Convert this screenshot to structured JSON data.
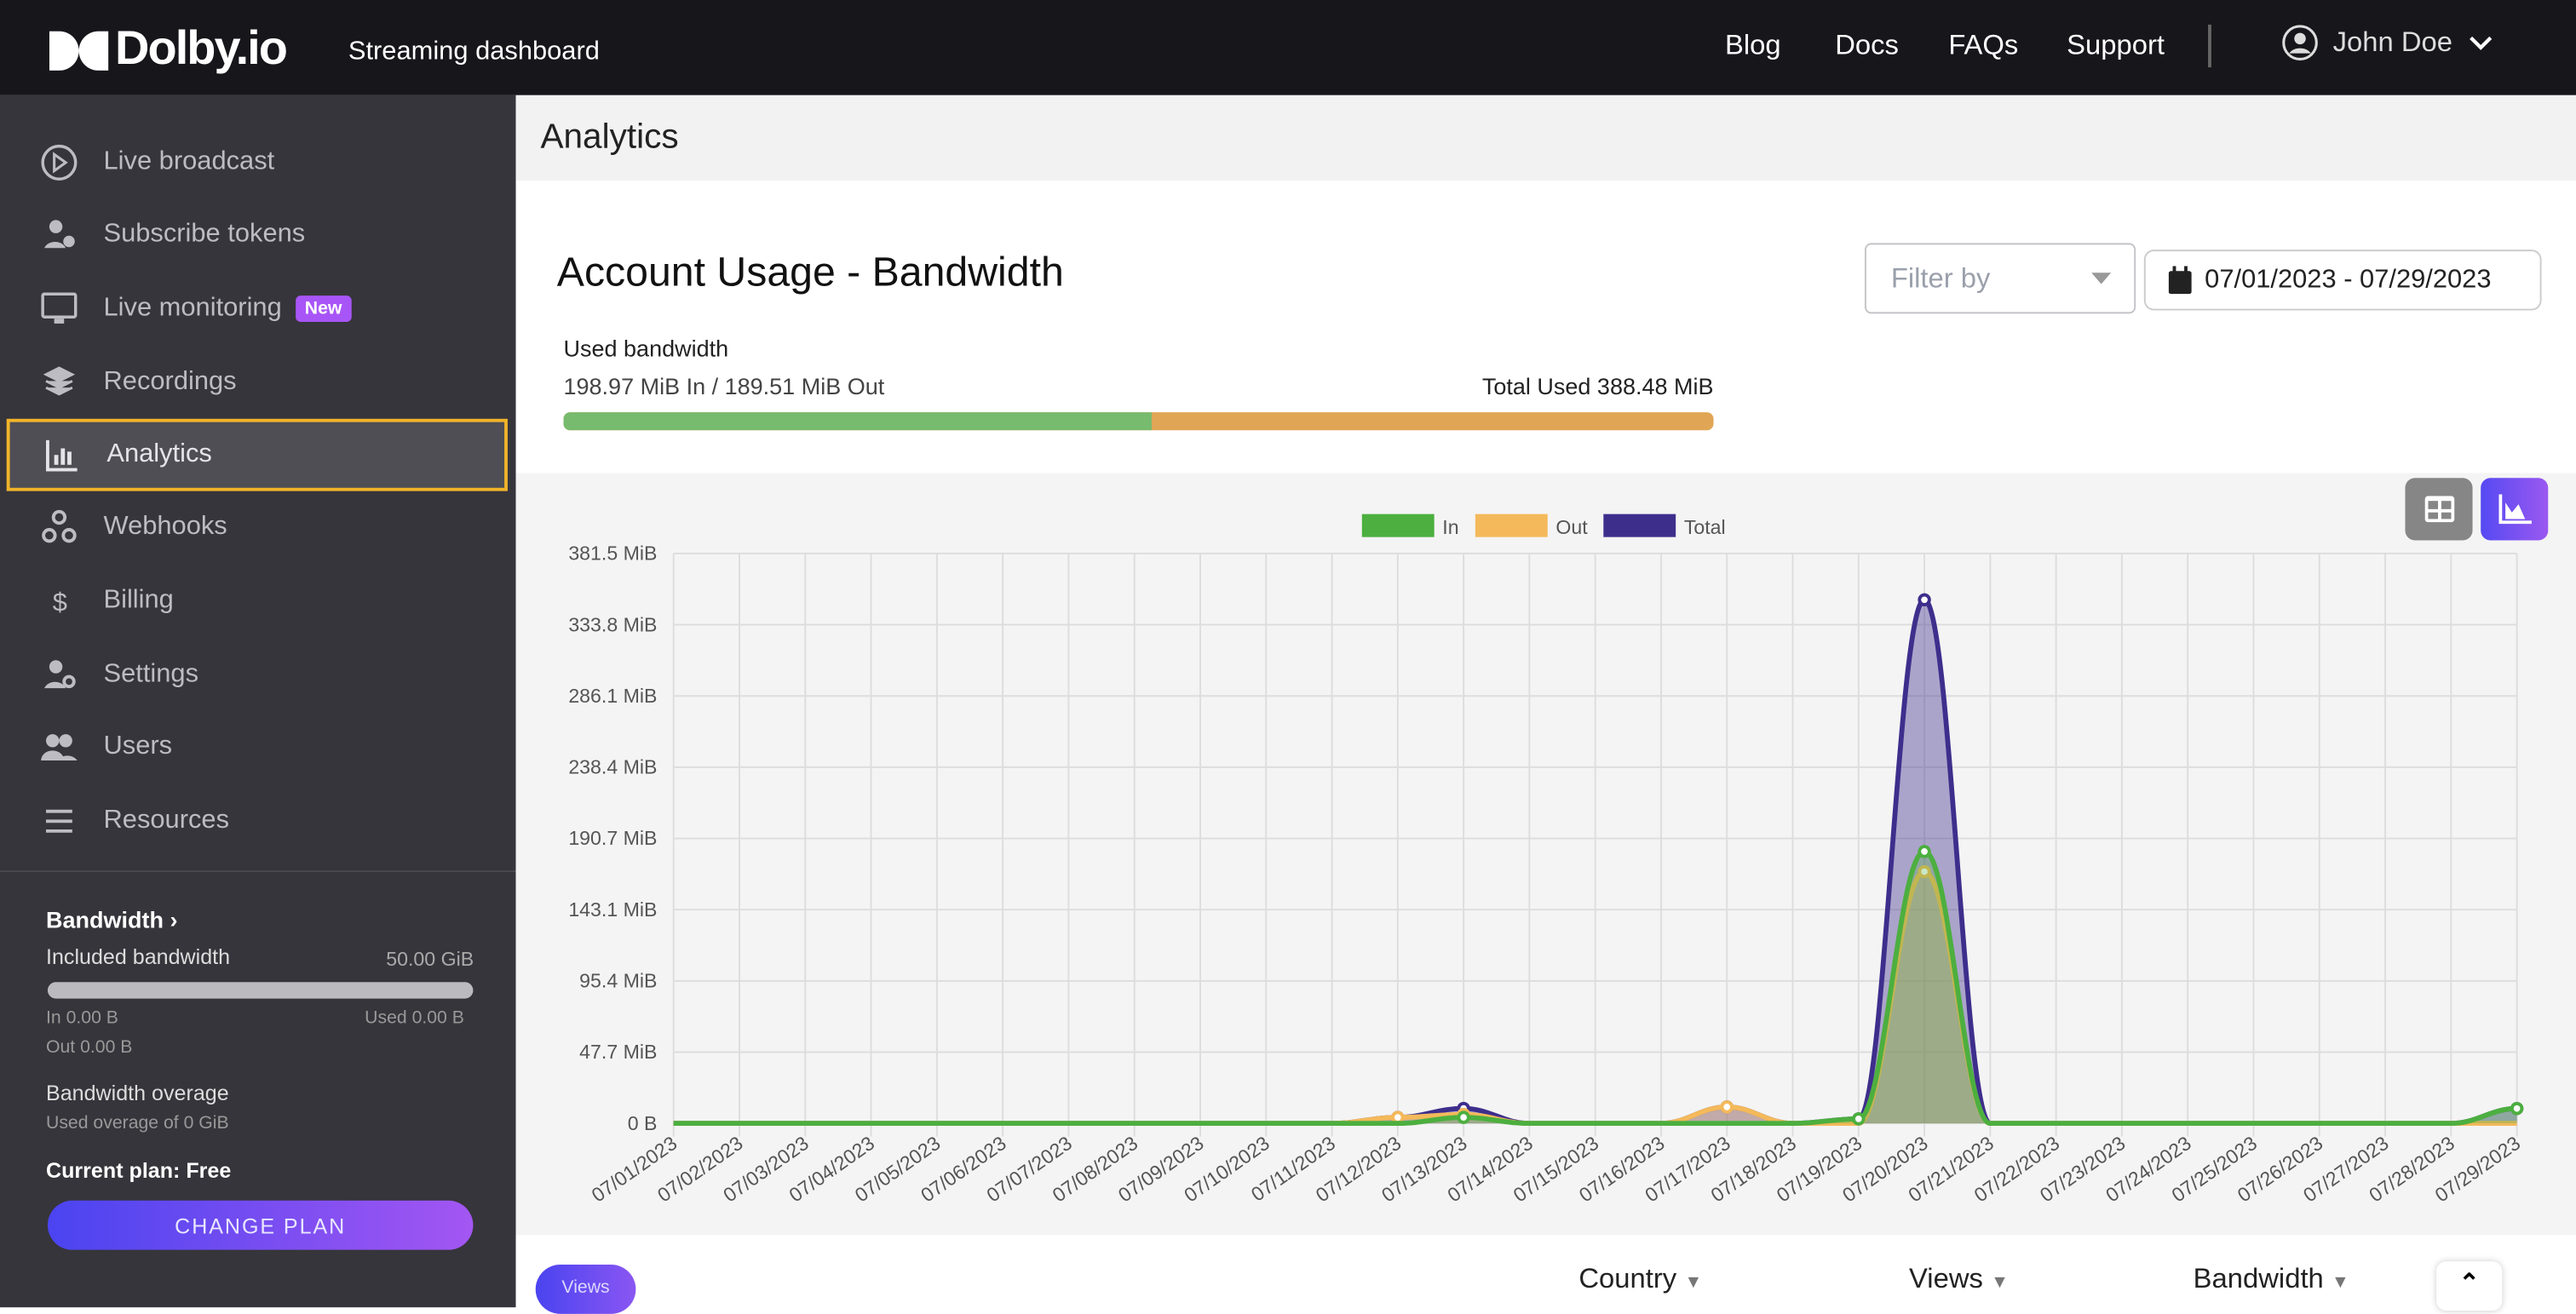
{
  "header": {
    "brand": "Dolby.io",
    "subtitle": "Streaming dashboard",
    "nav": [
      "Blog",
      "Docs",
      "FAQs",
      "Support"
    ],
    "user": "John Doe"
  },
  "sidebar": {
    "items": [
      {
        "label": "Live broadcast",
        "icon": "broadcast-icon"
      },
      {
        "label": "Subscribe tokens",
        "icon": "user-token-icon"
      },
      {
        "label": "Live monitoring",
        "icon": "monitor-icon",
        "badge": "New"
      },
      {
        "label": "Recordings",
        "icon": "layers-icon"
      },
      {
        "label": "Analytics",
        "icon": "chart-icon",
        "active": true
      },
      {
        "label": "Webhooks",
        "icon": "webhook-icon"
      },
      {
        "label": "Billing",
        "icon": "dollar-icon"
      },
      {
        "label": "Settings",
        "icon": "user-gear-icon"
      },
      {
        "label": "Users",
        "icon": "users-icon"
      },
      {
        "label": "Resources",
        "icon": "list-icon"
      }
    ],
    "bandwidth": {
      "title": "Bandwidth",
      "included_label": "Included bandwidth",
      "included_value": "50.00 GiB",
      "usage_fraction": 0,
      "in": "In 0.00 B",
      "used": "Used 0.00 B",
      "out": "Out 0.00 B",
      "overage_title": "Bandwidth overage",
      "overage_text": "Used overage of 0 GiB",
      "plan": "Current plan: Free",
      "change_plan": "CHANGE PLAN"
    }
  },
  "page": {
    "title": "Analytics",
    "card_title": "Account Usage - Bandwidth",
    "filter_placeholder": "Filter by",
    "date_range": "07/01/2023 - 07/29/2023",
    "used_label": "Used bandwidth",
    "in_out": "198.97 MiB In / 189.51 MiB Out",
    "total": "Total Used 388.48 MiB",
    "in_fraction": 0.512
  },
  "bottom": {
    "views_tab": "Views",
    "columns": [
      "Country",
      "Views",
      "Bandwidth"
    ]
  },
  "colors": {
    "in": "#4caf3f",
    "out": "#f4b95a",
    "total": "#3e2e8c",
    "accent": "#6d4ef5"
  },
  "chart_data": {
    "type": "area",
    "legend": [
      "In",
      "Out",
      "Total"
    ],
    "legend_position": "top",
    "x": [
      "07/01/2023",
      "07/02/2023",
      "07/03/2023",
      "07/04/2023",
      "07/05/2023",
      "07/06/2023",
      "07/07/2023",
      "07/08/2023",
      "07/09/2023",
      "07/10/2023",
      "07/11/2023",
      "07/12/2023",
      "07/13/2023",
      "07/14/2023",
      "07/15/2023",
      "07/16/2023",
      "07/17/2023",
      "07/18/2023",
      "07/19/2023",
      "07/20/2023",
      "07/21/2023",
      "07/22/2023",
      "07/23/2023",
      "07/24/2023",
      "07/25/2023",
      "07/26/2023",
      "07/27/2023",
      "07/28/2023",
      "07/29/2023"
    ],
    "yticks": [
      "0 B",
      "47.7 MiB",
      "95.4 MiB",
      "143.1 MiB",
      "190.7 MiB",
      "238.4 MiB",
      "286.1 MiB",
      "333.8 MiB",
      "381.5 MiB"
    ],
    "ylim": [
      0,
      381.5
    ],
    "grid": true,
    "series": [
      {
        "name": "In",
        "values": [
          0,
          0,
          0,
          0,
          0,
          0,
          0,
          0,
          0,
          0,
          0,
          0,
          4,
          0,
          0,
          0,
          0,
          0,
          3,
          182,
          0,
          0,
          0,
          0,
          0,
          0,
          0,
          0,
          9.97
        ]
      },
      {
        "name": "Out",
        "values": [
          0,
          0,
          0,
          0,
          0,
          0,
          0,
          0,
          0,
          0,
          0,
          4,
          6,
          0,
          0,
          0,
          11,
          0,
          0,
          168.51,
          0,
          0,
          0,
          0,
          0,
          0,
          0,
          0,
          0
        ]
      },
      {
        "name": "Total",
        "values": [
          0,
          0,
          0,
          0,
          0,
          0,
          0,
          0,
          0,
          0,
          0,
          4,
          10,
          0,
          0,
          0,
          11,
          0,
          3,
          350.51,
          0,
          0,
          0,
          0,
          0,
          0,
          0,
          0,
          9.97
        ]
      }
    ]
  }
}
